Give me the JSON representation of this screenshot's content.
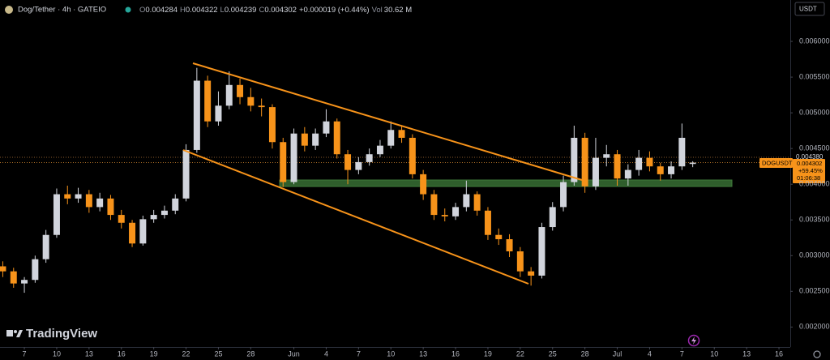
{
  "chart_data": {
    "type": "candlestick",
    "title": "Dog/Tether · 4h · GATEIO",
    "ohlc_labels": [
      "O",
      "H",
      "L",
      "C"
    ],
    "change_label": "+0.000019 (+0.44%)",
    "volume_label": "Vol",
    "volume_value": "30.62 M",
    "currency": "USDT",
    "symbol": "DOGUSDT",
    "prev_price_label": "0.004380",
    "change_percent_label": "+59.45%",
    "countdown": "01:06:38",
    "brand": "TradingView",
    "up_color": "#d1d4dc",
    "down_color": "#f7931a",
    "x": [
      -2,
      -1,
      0,
      1,
      2,
      3,
      4,
      5,
      6,
      7,
      8,
      9,
      10,
      11,
      12,
      13,
      14,
      15,
      16,
      17,
      18,
      19,
      20,
      21,
      22,
      23,
      24,
      25,
      26,
      27,
      28,
      29,
      30,
      31,
      32,
      33,
      34,
      35,
      36,
      37,
      38,
      39,
      40,
      41,
      42,
      43,
      44,
      45,
      46,
      47,
      48,
      49,
      50,
      51,
      52,
      53,
      54,
      55,
      56,
      57,
      58,
      59,
      60,
      61,
      62
    ],
    "open": [
      0.00285,
      0.00278,
      0.00261,
      0.00266,
      0.00295,
      0.00329,
      0.00386,
      0.0038,
      0.00386,
      0.00368,
      0.0038,
      0.00357,
      0.00346,
      0.00317,
      0.00351,
      0.00357,
      0.00363,
      0.0038,
      0.00448,
      0.00545,
      0.00488,
      0.0051,
      0.00539,
      0.00522,
      0.0051,
      0.00508,
      0.00459,
      0.00403,
      0.00471,
      0.00454,
      0.00471,
      0.00488,
      0.00442,
      0.0042,
      0.00431,
      0.00442,
      0.00454,
      0.00476,
      0.00465,
      0.00414,
      0.00386,
      0.00357,
      0.00355,
      0.00368,
      0.00386,
      0.00363,
      0.00329,
      0.00323,
      0.00306,
      0.00278,
      0.00272,
      0.0034,
      0.00368,
      0.00403,
      0.00465,
      0.00397,
      0.00437,
      0.00442,
      0.00408,
      0.0042,
      0.00437,
      0.00425,
      0.00414,
      0.00425,
      0.004284
    ],
    "high": [
      0.00292,
      0.00283,
      0.0027,
      0.003,
      0.00336,
      0.00394,
      0.00398,
      0.00395,
      0.00392,
      0.00388,
      0.00385,
      0.00364,
      0.0035,
      0.00356,
      0.00364,
      0.0037,
      0.00386,
      0.00456,
      0.00563,
      0.00552,
      0.0053,
      0.00558,
      0.00548,
      0.00535,
      0.0052,
      0.00512,
      0.00465,
      0.00478,
      0.0048,
      0.00478,
      0.00505,
      0.00492,
      0.00448,
      0.00438,
      0.0045,
      0.00462,
      0.00488,
      0.00482,
      0.0047,
      0.0042,
      0.00392,
      0.00366,
      0.00374,
      0.00405,
      0.0039,
      0.00368,
      0.00338,
      0.0033,
      0.00312,
      0.00284,
      0.00346,
      0.00375,
      0.00412,
      0.00482,
      0.00472,
      0.00465,
      0.00455,
      0.00448,
      0.00428,
      0.00448,
      0.00446,
      0.0043,
      0.00432,
      0.00485,
      0.004322
    ],
    "low": [
      0.0027,
      0.00255,
      0.00248,
      0.00262,
      0.0029,
      0.00325,
      0.00372,
      0.00374,
      0.0036,
      0.00362,
      0.0035,
      0.00338,
      0.00312,
      0.00314,
      0.00346,
      0.00352,
      0.00358,
      0.00376,
      0.00444,
      0.0048,
      0.00482,
      0.00505,
      0.00512,
      0.00502,
      0.00495,
      0.0045,
      0.00396,
      0.004,
      0.00446,
      0.00448,
      0.00466,
      0.00436,
      0.004,
      0.00414,
      0.00426,
      0.00438,
      0.0045,
      0.00458,
      0.00408,
      0.00378,
      0.0035,
      0.00348,
      0.0035,
      0.00362,
      0.00356,
      0.00322,
      0.00315,
      0.00298,
      0.0027,
      0.00258,
      0.00268,
      0.00335,
      0.00362,
      0.00398,
      0.00388,
      0.00392,
      0.00425,
      0.00398,
      0.00398,
      0.00412,
      0.00418,
      0.00405,
      0.00408,
      0.0042,
      0.004239
    ],
    "close": [
      0.00278,
      0.00261,
      0.00266,
      0.00295,
      0.00329,
      0.00386,
      0.0038,
      0.00386,
      0.00368,
      0.0038,
      0.00357,
      0.00346,
      0.00317,
      0.00351,
      0.00357,
      0.00363,
      0.0038,
      0.00448,
      0.00545,
      0.00488,
      0.0051,
      0.00539,
      0.00522,
      0.0051,
      0.00508,
      0.00459,
      0.00403,
      0.00471,
      0.00454,
      0.00471,
      0.00488,
      0.00442,
      0.0042,
      0.00431,
      0.00442,
      0.00454,
      0.00476,
      0.00465,
      0.00414,
      0.00386,
      0.00357,
      0.00355,
      0.00368,
      0.00386,
      0.00363,
      0.00329,
      0.00323,
      0.00306,
      0.00278,
      0.00272,
      0.0034,
      0.00368,
      0.00403,
      0.00465,
      0.00397,
      0.00437,
      0.00442,
      0.00408,
      0.0042,
      0.00437,
      0.00425,
      0.00414,
      0.00425,
      0.00465,
      0.004302
    ],
    "xlim": [
      -2.26,
      71.05
    ],
    "xticks": [
      {
        "value": 0,
        "label": "7"
      },
      {
        "value": 3,
        "label": "10"
      },
      {
        "value": 6,
        "label": "13"
      },
      {
        "value": 9,
        "label": "16"
      },
      {
        "value": 12,
        "label": "19"
      },
      {
        "value": 15,
        "label": "22"
      },
      {
        "value": 18,
        "label": "25"
      },
      {
        "value": 21,
        "label": "28"
      },
      {
        "value": 25,
        "label": "Jun"
      },
      {
        "value": 28,
        "label": "4"
      },
      {
        "value": 31,
        "label": "7"
      },
      {
        "value": 34,
        "label": "10"
      },
      {
        "value": 37,
        "label": "13"
      },
      {
        "value": 40,
        "label": "16"
      },
      {
        "value": 43,
        "label": "19"
      },
      {
        "value": 46,
        "label": "22"
      },
      {
        "value": 49,
        "label": "25"
      },
      {
        "value": 52,
        "label": "28"
      },
      {
        "value": 55,
        "label": "Jul"
      },
      {
        "value": 58,
        "label": "4"
      },
      {
        "value": 61,
        "label": "7"
      },
      {
        "value": 64,
        "label": "10"
      },
      {
        "value": 67,
        "label": "13"
      },
      {
        "value": 70,
        "label": "16"
      }
    ],
    "ylim": [
      0.00172,
      0.00658
    ],
    "yticks": [
      {
        "value": 0.002,
        "label": "0.002000"
      },
      {
        "value": 0.0025,
        "label": "0.002500"
      },
      {
        "value": 0.003,
        "label": "0.003000"
      },
      {
        "value": 0.0035,
        "label": "0.003500"
      },
      {
        "value": 0.004,
        "label": "0.004000"
      },
      {
        "value": 0.0045,
        "label": "0.004500"
      },
      {
        "value": 0.005,
        "label": "0.005000"
      },
      {
        "value": 0.0055,
        "label": "0.005500"
      },
      {
        "value": 0.006,
        "label": "0.006000"
      }
    ],
    "grid": false
  }
}
